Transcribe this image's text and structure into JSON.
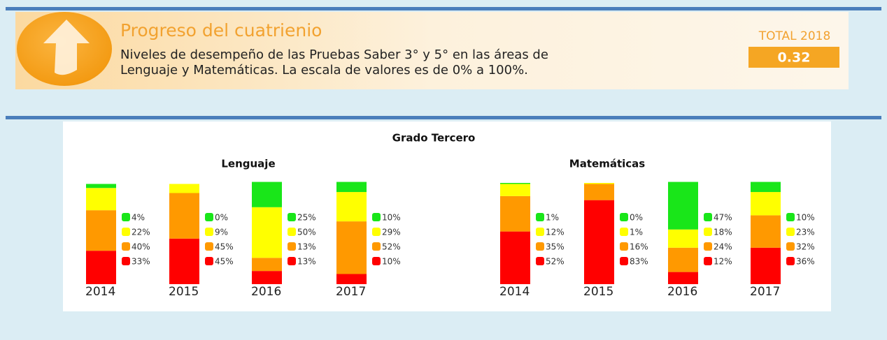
{
  "header": {
    "title": "Progreso del cuatrienio",
    "description": [
      "Niveles de desempeño de las Pruebas Saber 3° y 5° en las áreas de",
      "Lenguaje y Matemáticas. La escala de valores es de 0% a 100%."
    ],
    "total_label": "TOTAL 2018",
    "total_value": 0.32
  },
  "section_title": "Grado Tercero",
  "chart_data": [
    {
      "type": "stacked_bar",
      "title": "Lenguaje",
      "categories": [
        "2014",
        "2015",
        "2016",
        "2017"
      ],
      "ylim": [
        0,
        100
      ],
      "series": [
        {
          "color": "#19e619",
          "values": [
            4,
            0,
            25,
            10
          ],
          "value_labels": [
            "4%",
            "0%",
            "25%",
            "10%"
          ]
        },
        {
          "color": "#ffff00",
          "values": [
            22,
            9,
            50,
            29
          ],
          "value_labels": [
            "22%",
            "9%",
            "50%",
            "29%"
          ]
        },
        {
          "color": "#ff9900",
          "values": [
            40,
            45,
            13,
            52
          ],
          "value_labels": [
            "40%",
            "45%",
            "13%",
            "52%"
          ]
        },
        {
          "color": "#ff0000",
          "values": [
            33,
            45,
            13,
            10
          ],
          "value_labels": [
            "33%",
            "45%",
            "13%",
            "10%"
          ]
        }
      ]
    },
    {
      "type": "stacked_bar",
      "title": "Matemáticas",
      "categories": [
        "2014",
        "2015",
        "2016",
        "2017"
      ],
      "ylim": [
        0,
        100
      ],
      "series": [
        {
          "color": "#19e619",
          "values": [
            1,
            0,
            47,
            10
          ],
          "value_labels": [
            "1%",
            "0%",
            "47%",
            "10%"
          ]
        },
        {
          "color": "#ffff00",
          "values": [
            12,
            1,
            18,
            23
          ],
          "value_labels": [
            "12%",
            "1%",
            "18%",
            "23%"
          ]
        },
        {
          "color": "#ff9900",
          "values": [
            35,
            16,
            24,
            32
          ],
          "value_labels": [
            "35%",
            "16%",
            "24%",
            "32%"
          ]
        },
        {
          "color": "#ff0000",
          "values": [
            52,
            83,
            12,
            36
          ],
          "value_labels": [
            "52%",
            "83%",
            "12%",
            "36%"
          ]
        }
      ]
    }
  ]
}
